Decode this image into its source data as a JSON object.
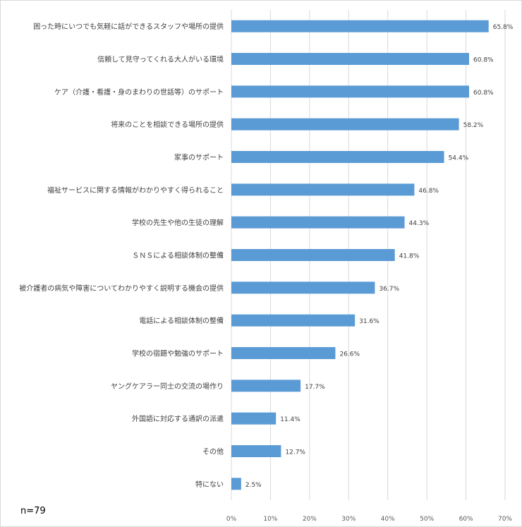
{
  "note": "n=79",
  "colors": {
    "bar": "#5b9bd5",
    "grid": "#d9d9d9",
    "text": "#404040"
  },
  "chart_data": {
    "type": "bar",
    "orientation": "horizontal",
    "categories": [
      "困った時にいつでも気軽に話ができるスタッフや場所の提供",
      "信頼して見守ってくれる大人がいる環境",
      "ケア（介護・看護・身のまわりの世話等）のサポート",
      "将来のことを相談できる場所の提供",
      "家事のサポート",
      "福祉サービスに関する情報がわかりやすく得られること",
      "学校の先生や他の生徒の理解",
      "ＳＮＳによる相談体制の整備",
      "被介護者の病気や障害についてわかりやすく説明する機会の提供",
      "電話による相談体制の整備",
      "学校の宿題や勉強のサポート",
      "ヤングケアラー同士の交流の場作り",
      "外国語に対応する通訳の派遣",
      "その他",
      "特にない"
    ],
    "values": [
      65.8,
      60.8,
      60.8,
      58.2,
      54.4,
      46.8,
      44.3,
      41.8,
      36.7,
      31.6,
      26.6,
      17.7,
      11.4,
      12.7,
      2.5
    ],
    "value_labels": [
      "65.8%",
      "60.8%",
      "60.8%",
      "58.2%",
      "54.4%",
      "46.8%",
      "44.3%",
      "41.8%",
      "36.7%",
      "31.6%",
      "26.6%",
      "17.7%",
      "11.4%",
      "12.7%",
      "2.5%"
    ],
    "xlim": [
      0,
      70
    ],
    "xticks": [
      0,
      10,
      20,
      30,
      40,
      50,
      60,
      70
    ],
    "xtick_labels": [
      "0%",
      "10%",
      "20%",
      "30%",
      "40%",
      "50%",
      "60%",
      "70%"
    ],
    "grid": true,
    "legend": false
  }
}
